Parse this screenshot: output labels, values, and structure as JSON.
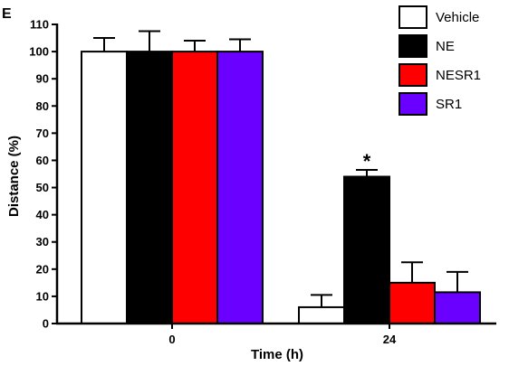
{
  "chart_data": {
    "type": "bar",
    "panel_label": "E",
    "title": "",
    "xlabel": "Time (h)",
    "ylabel": "Distance (%)",
    "ylim": [
      0,
      110
    ],
    "yticks": [
      0,
      10,
      20,
      30,
      40,
      50,
      60,
      70,
      80,
      90,
      100,
      110
    ],
    "categories": [
      "0",
      "24"
    ],
    "legend_position": "top-right",
    "series": [
      {
        "name": "Vehicle",
        "color": "#ffffff",
        "values": [
          100,
          6
        ],
        "errors": [
          5,
          4.5
        ]
      },
      {
        "name": "NE",
        "color": "#000000",
        "values": [
          100,
          54
        ],
        "errors": [
          7.5,
          2.5
        ]
      },
      {
        "name": "NESR1",
        "color": "#ff0000",
        "values": [
          100,
          15
        ],
        "errors": [
          4,
          7.5
        ]
      },
      {
        "name": "SR1",
        "color": "#6a00ff",
        "values": [
          100,
          11.5
        ],
        "errors": [
          4.5,
          7.5
        ]
      }
    ],
    "annotations": [
      {
        "text": "*",
        "category": "24",
        "series": "NE"
      }
    ]
  }
}
